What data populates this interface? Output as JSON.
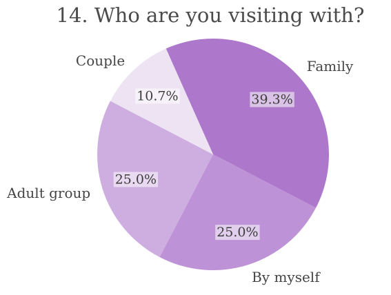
{
  "chart_data": {
    "type": "pie",
    "title": "14. Who are you visiting with?",
    "categories": [
      "Family",
      "By myself",
      "Adult group",
      "Couple"
    ],
    "values": [
      39.3,
      25.0,
      25.0,
      10.7
    ],
    "value_labels": [
      "39.3%",
      "25.0%",
      "25.0%",
      "10.7%"
    ],
    "colors": [
      "#ad78cb",
      "#bd92d6",
      "#ceade0",
      "#ede3f2"
    ],
    "start": "top, clockwise",
    "legend": "none (category labels outside slices)"
  }
}
